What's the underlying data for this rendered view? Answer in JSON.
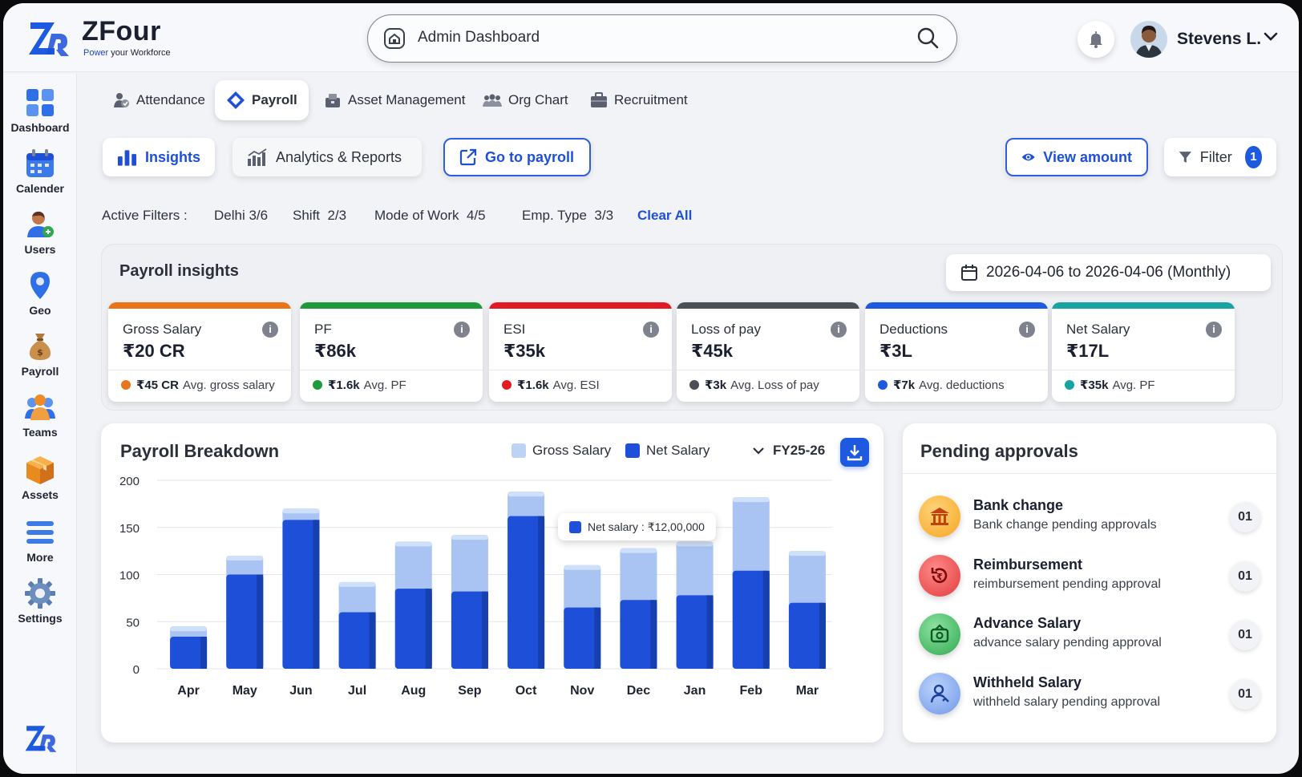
{
  "brand": {
    "name": "ZFour",
    "tagline_accent": "Power",
    "tagline_rest": "your Workforce"
  },
  "search": {
    "value": "Admin Dashboard"
  },
  "user": {
    "name": "Stevens L."
  },
  "sidebar": {
    "items": [
      {
        "label": "Dashboard",
        "icon": "dashboard-icon"
      },
      {
        "label": "Calender",
        "icon": "calendar-icon"
      },
      {
        "label": "Users",
        "icon": "users-icon"
      },
      {
        "label": "Geo",
        "icon": "geo-pin-icon"
      },
      {
        "label": "Payroll",
        "icon": "money-bag-icon"
      },
      {
        "label": "Teams",
        "icon": "teams-icon"
      },
      {
        "label": "Assets",
        "icon": "box-icon"
      },
      {
        "label": "More",
        "icon": "menu-icon"
      },
      {
        "label": "Settings",
        "icon": "gear-icon"
      }
    ]
  },
  "module_tabs": [
    {
      "label": "Attendance",
      "icon": "attendance-icon",
      "active": false
    },
    {
      "label": "Payroll",
      "icon": "payroll-diamond-icon",
      "active": true
    },
    {
      "label": "Asset Management",
      "icon": "asset-icon",
      "active": false
    },
    {
      "label": "Org Chart",
      "icon": "org-chart-icon",
      "active": false
    },
    {
      "label": "Recruitment",
      "icon": "briefcase-icon",
      "active": false
    }
  ],
  "sub_tabs": {
    "insights": "Insights",
    "analytics": "Analytics & Reports",
    "goto_payroll": "Go to payroll",
    "view_amount": "View amount",
    "filter": "Filter",
    "filter_count": "1"
  },
  "active_filters": {
    "label": "Active Filters :",
    "items": [
      "Delhi 3/6",
      "Shift  2/3",
      "Mode of Work  4/5",
      "Emp. Type  3/3"
    ],
    "clear": "Clear All"
  },
  "payroll_insights": {
    "title": "Payroll insights",
    "date_range": "2026-04-06 to 2026-04-06 (Monthly)",
    "kpis": [
      {
        "label": "Gross Salary",
        "value": "₹20 CR",
        "avg_value": "₹45 CR",
        "avg_label": "Avg. gross salary",
        "color": "#e8751a"
      },
      {
        "label": "PF",
        "value": "₹86k",
        "avg_value": "₹1.6k",
        "avg_label": "Avg. PF",
        "color": "#1f9a3a"
      },
      {
        "label": "ESI",
        "value": "₹35k",
        "avg_value": "₹1.6k",
        "avg_label": "Avg. ESI",
        "color": "#e01b24"
      },
      {
        "label": "Loss of pay",
        "value": "₹45k",
        "avg_value": "₹3k",
        "avg_label": "Avg. Loss of pay",
        "color": "#4a4f58"
      },
      {
        "label": "Deductions",
        "value": "₹3L",
        "avg_value": "₹7k",
        "avg_label": "Avg. deductions",
        "color": "#1d5ae0"
      },
      {
        "label": "Net Salary",
        "value": "₹17L",
        "avg_value": "₹35k",
        "avg_label": "Avg. PF",
        "color": "#17a3a0"
      }
    ]
  },
  "breakdown": {
    "title": "Payroll Breakdown",
    "legend_gross": "Gross Salary",
    "legend_net": "Net Salary",
    "fiscal_year": "FY25-26",
    "tooltip": "Net salary : ₹12,00,000"
  },
  "chart_data": {
    "type": "bar",
    "stacked": "overlay",
    "categories": [
      "Apr",
      "May",
      "Jun",
      "Jul",
      "Aug",
      "Sep",
      "Oct",
      "Nov",
      "Dec",
      "Jan",
      "Feb",
      "Mar"
    ],
    "series": [
      {
        "name": "Gross Salary",
        "values": [
          45,
          120,
          170,
          92,
          135,
          142,
          188,
          110,
          128,
          135,
          182,
          125
        ],
        "color": "#a9c4f2"
      },
      {
        "name": "Net Salary",
        "values": [
          34,
          100,
          158,
          60,
          85,
          82,
          162,
          65,
          73,
          78,
          104,
          70
        ],
        "color": "#1d4fd8"
      }
    ],
    "yticks": [
      0,
      50,
      100,
      150,
      200
    ],
    "ylim": [
      0,
      200
    ],
    "grid": true
  },
  "approvals": {
    "title": "Pending approvals",
    "items": [
      {
        "title": "Bank change",
        "subtitle": "Bank change pending approvals",
        "count": "01",
        "icon": "bank-icon",
        "color": "#f5a623"
      },
      {
        "title": "Reimbursement",
        "subtitle": "reimbursement pending approval",
        "count": "01",
        "icon": "reimbursement-icon",
        "color": "#e23b3b"
      },
      {
        "title": "Advance Salary",
        "subtitle": "advance salary pending approval",
        "count": "01",
        "icon": "advance-salary-icon",
        "color": "#2fa84f"
      },
      {
        "title": "Withheld Salary",
        "subtitle": "withheld salary pending approval",
        "count": "01",
        "icon": "withheld-user-icon",
        "color": "#4a7fe0"
      }
    ]
  }
}
